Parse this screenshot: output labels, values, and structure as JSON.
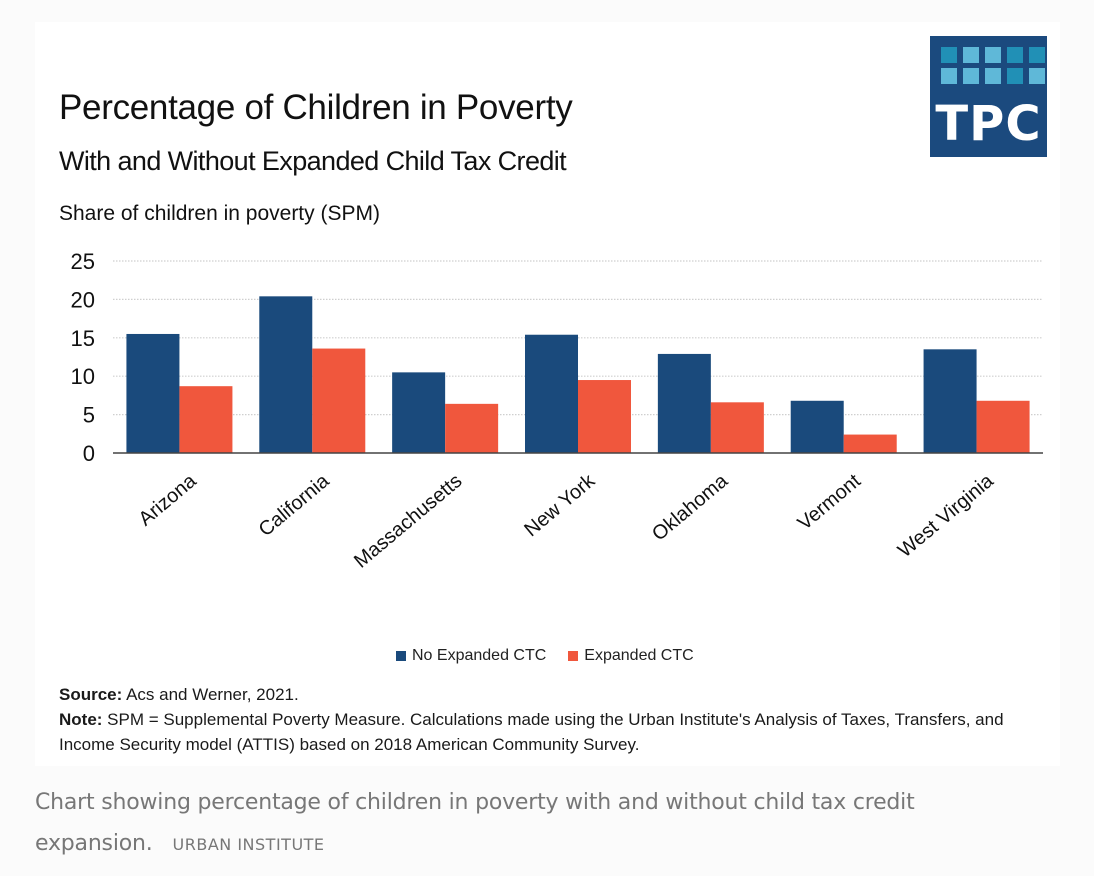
{
  "figure": {
    "title": "Percentage of Children in Poverty",
    "subtitle": "With and Without Expanded Child Tax Credit",
    "logo": {
      "text": "TPC",
      "name": "tpc-logo",
      "bg_color": "#1b4a7e"
    },
    "source_label": "Source:",
    "source_text": " Acs and Werner, 2021.",
    "note_label": "Note:",
    "note_text": " SPM = Supplemental Poverty Measure. Calculations made using the Urban Institute's Analysis of Taxes, Transfers, and Income Security model (ATTIS) based on 2018 American Community Survey."
  },
  "caption": {
    "text": "Chart showing percentage of children in poverty with and without child tax credit expansion.",
    "credit": "URBAN INSTITUTE"
  },
  "chart_data": {
    "type": "bar",
    "title": "Percentage of Children in Poverty",
    "subtitle": "With and Without Expanded Child Tax Credit",
    "xlabel": "",
    "ylabel": "Share of children in poverty (SPM)",
    "ylim": [
      0,
      25
    ],
    "yticks": [
      0,
      5,
      10,
      15,
      20,
      25
    ],
    "grid": true,
    "legend_position": "bottom-center",
    "categories": [
      "Arizona",
      "California",
      "Massachusetts",
      "New York",
      "Oklahoma",
      "Vermont",
      "West Virginia"
    ],
    "series": [
      {
        "name": "No Expanded CTC",
        "color": "#1a4a7c",
        "values": [
          15.5,
          20.4,
          10.5,
          15.4,
          12.9,
          6.8,
          13.5
        ]
      },
      {
        "name": "Expanded CTC",
        "color": "#f0573d",
        "values": [
          8.7,
          13.6,
          6.4,
          9.5,
          6.6,
          2.4,
          6.8
        ]
      }
    ]
  }
}
